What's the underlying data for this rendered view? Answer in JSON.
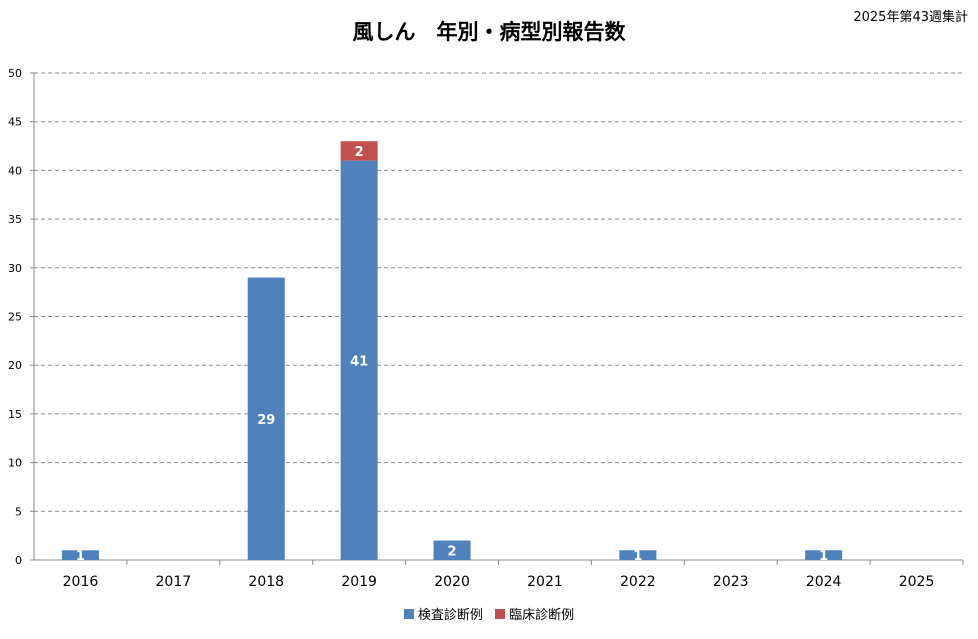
{
  "chart_data": {
    "type": "bar",
    "stacked": true,
    "title": "風しん　年別・病型別報告数",
    "subtitle": "2025年第43週集計",
    "categories": [
      "2016",
      "2017",
      "2018",
      "2019",
      "2020",
      "2021",
      "2022",
      "2023",
      "2024",
      "2025"
    ],
    "series": [
      {
        "name": "検査診断例",
        "color": "#4f81bd",
        "values": [
          1,
          0,
          29,
          41,
          2,
          0,
          1,
          0,
          1,
          0
        ]
      },
      {
        "name": "臨床診断例",
        "color": "#c0504d",
        "values": [
          0,
          0,
          0,
          2,
          0,
          0,
          0,
          0,
          0,
          0
        ]
      }
    ],
    "ylim": [
      0,
      50
    ],
    "yticks": [
      0,
      5,
      10,
      15,
      20,
      25,
      30,
      35,
      40,
      45,
      50
    ],
    "grid": true,
    "legend": "bottom"
  }
}
